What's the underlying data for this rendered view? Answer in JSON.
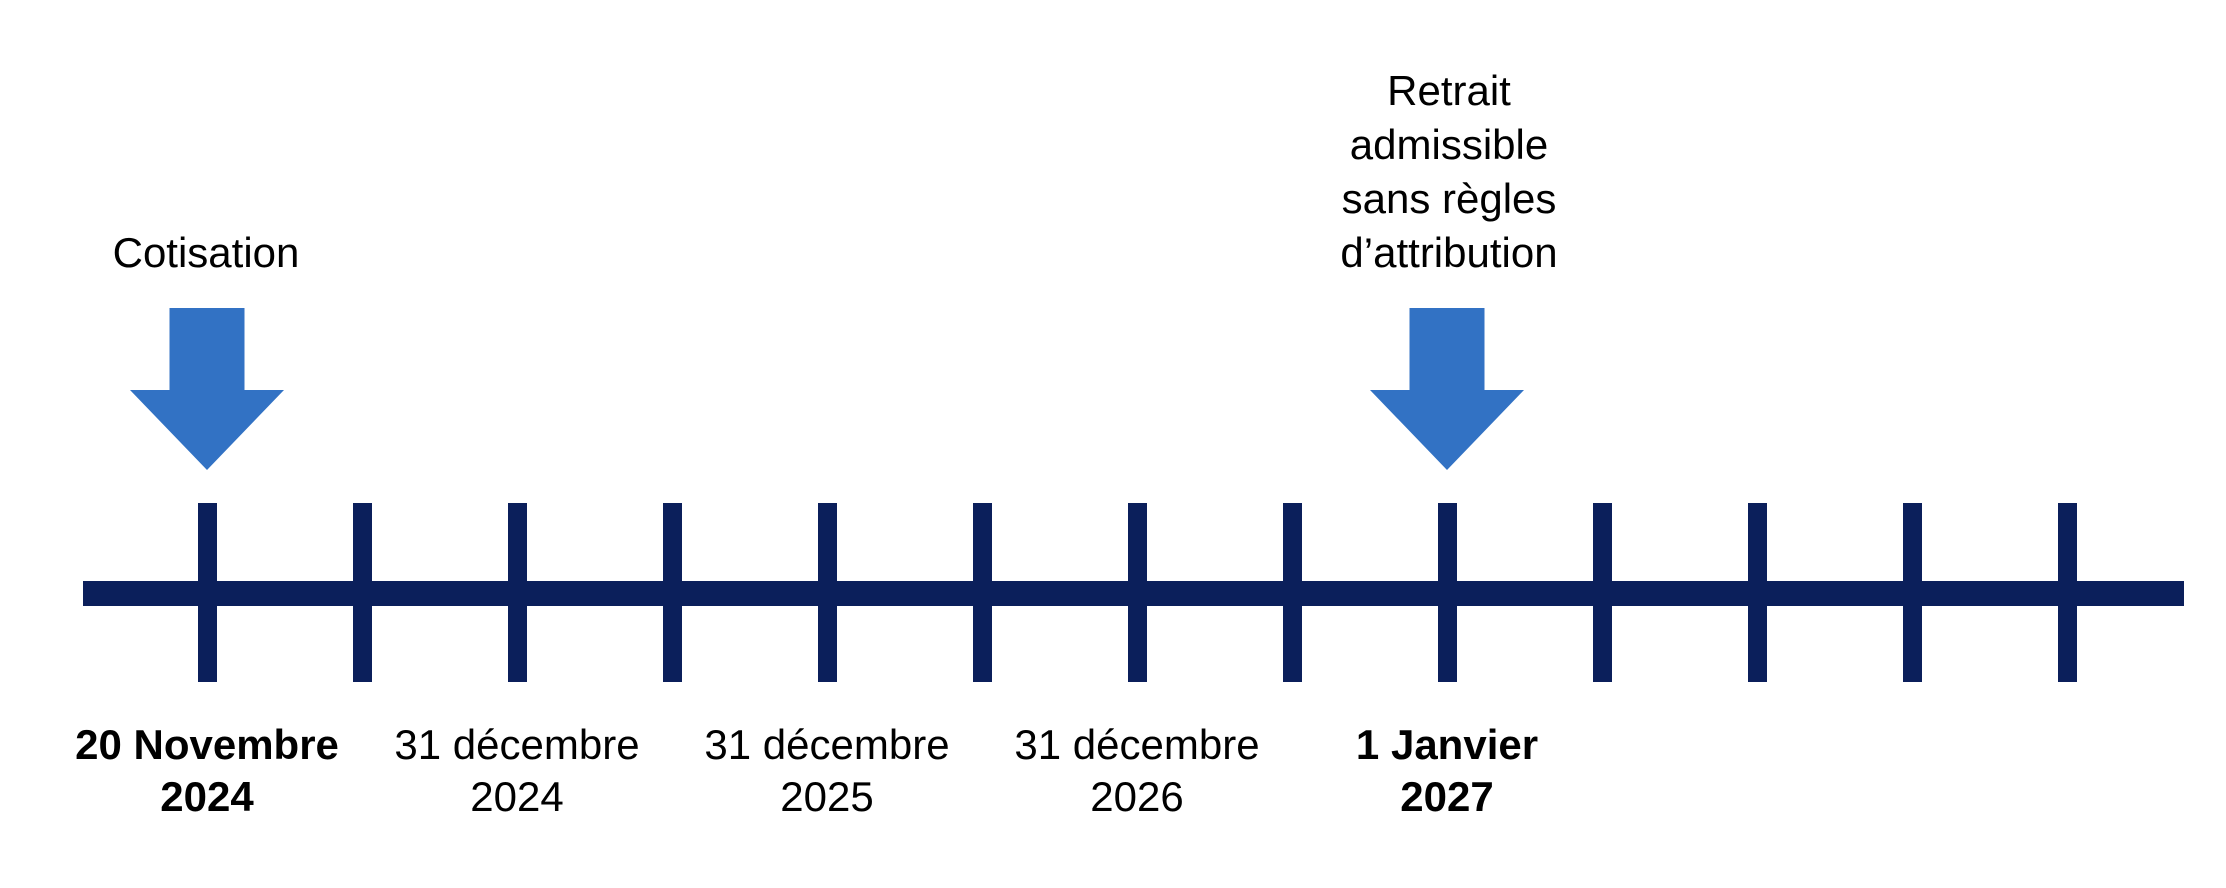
{
  "colors": {
    "background": "#FFFFFF",
    "timeline_navy": "#0B1F5B",
    "arrow_blue": "#3272C4",
    "text": "#000000"
  },
  "callouts": {
    "cotisation": {
      "label": "Cotisation"
    },
    "retrait": {
      "lines": [
        "Retrait",
        "admissible",
        "sans règles",
        "d’attribution"
      ]
    }
  },
  "timeline": {
    "tick_count": 13,
    "date_labels": [
      {
        "line1": "20 Novembre",
        "line2": "2024",
        "emphasis": "bold"
      },
      {
        "line1": "31 décembre",
        "line2": "2024",
        "emphasis": "regular"
      },
      {
        "line1": "31 décembre",
        "line2": "2025",
        "emphasis": "regular"
      },
      {
        "line1": "31 décembre",
        "line2": "2026",
        "emphasis": "regular"
      },
      {
        "line1": "1 Janvier",
        "line2": "2027",
        "emphasis": "bold"
      }
    ]
  }
}
